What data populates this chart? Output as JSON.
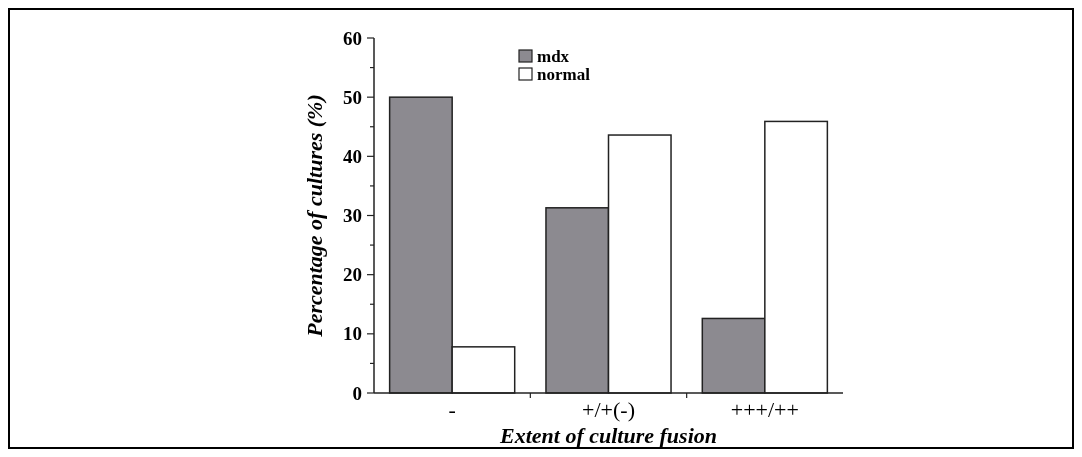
{
  "chart_data": {
    "type": "bar",
    "xlabel": "Extent of culture fusion",
    "ylabel": "Percentage of cultures (%)",
    "categories": [
      "-",
      "+/+(-)",
      "+++/++"
    ],
    "series": [
      {
        "name": "mdx",
        "color": "#8c8a90",
        "values": [
          50,
          31.3,
          12.6
        ]
      },
      {
        "name": "normal",
        "color": "#ffffff",
        "values": [
          7.8,
          43.6,
          45.9
        ]
      }
    ],
    "ylim": [
      0,
      60
    ],
    "yticks": [
      0,
      {
        "value": 5,
        "label": null
      },
      10,
      {
        "value": 15,
        "label": null
      },
      20,
      {
        "value": 25,
        "label": null
      },
      30,
      {
        "value": 35,
        "label": null
      },
      40,
      {
        "value": 45,
        "label": null
      },
      50,
      {
        "value": 55,
        "label": null
      },
      60
    ],
    "legend": "top",
    "grid": false
  }
}
